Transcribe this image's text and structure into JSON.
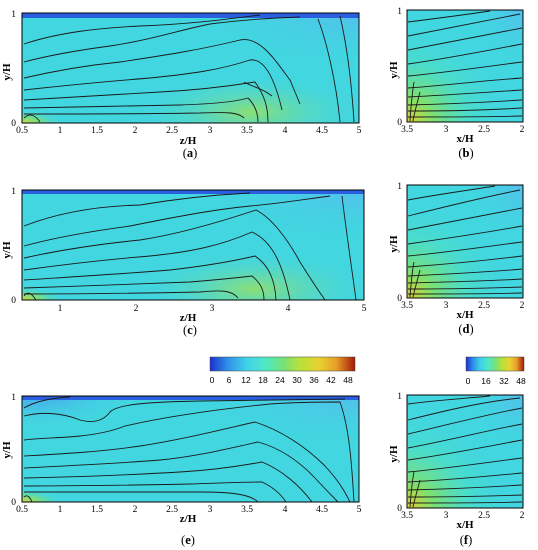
{
  "panels": [
    {
      "id": "a",
      "label_open": "(",
      "label_letter": "a",
      "label_close": ")",
      "xlabel": "z/H",
      "ylabel": "y/H",
      "xticks": [
        "0.5",
        "1",
        "1.5",
        "2",
        "2.5",
        "3",
        "3.5",
        "4",
        "4.5",
        "5"
      ],
      "yticks": [
        "0",
        "1"
      ]
    },
    {
      "id": "b",
      "label_open": "(",
      "label_letter": "b",
      "label_close": ")",
      "xlabel": "x/H",
      "ylabel": "y/H",
      "xticks": [
        "3.5",
        "3",
        "2.5",
        "2"
      ],
      "yticks": [
        "0",
        "1"
      ]
    },
    {
      "id": "c",
      "label_open": "(",
      "label_letter": "c",
      "label_close": ")",
      "xlabel": "z/H",
      "ylabel": "y/H",
      "xticks": [
        "1",
        "2",
        "3",
        "4",
        "5"
      ],
      "yticks": [
        "0",
        "1"
      ]
    },
    {
      "id": "d",
      "label_open": "(",
      "label_letter": "d",
      "label_close": ")",
      "xlabel": "x/H",
      "ylabel": "y/H",
      "xticks": [
        "3.5",
        "3",
        "2.5",
        "2"
      ],
      "yticks": [
        "0",
        "1"
      ]
    },
    {
      "id": "e",
      "label_open": "(",
      "label_letter": "e",
      "label_close": ")",
      "xlabel": "z/H",
      "ylabel": "y/H",
      "xticks": [
        "0.5",
        "1",
        "1.5",
        "2",
        "2.5",
        "3",
        "3.5",
        "4",
        "4.5",
        "5"
      ],
      "yticks": [
        "0",
        "1"
      ]
    },
    {
      "id": "f",
      "label_open": "(",
      "label_letter": "f",
      "label_close": ")",
      "xlabel": "x/H",
      "ylabel": "y/H",
      "xticks": [
        "3.5",
        "3",
        "2.5",
        "2"
      ],
      "yticks": [
        "0",
        "1"
      ]
    }
  ],
  "colorbars": [
    {
      "id": "main",
      "ticks": [
        "0",
        "6",
        "12",
        "18",
        "24",
        "30",
        "36",
        "42",
        "48"
      ]
    },
    {
      "id": "small",
      "ticks": [
        "0",
        "16",
        "32",
        "48"
      ]
    }
  ],
  "colors": {
    "scale": [
      "#1e2fd0",
      "#2f8fe8",
      "#3fd2e8",
      "#4fe8c8",
      "#72e27a",
      "#b8e03a",
      "#e8d230",
      "#e8a028",
      "#c84818",
      "#a01808"
    ],
    "field_base": "#3fd6e2",
    "field_warm": "#8ee46a",
    "contour": "#1a1a1a"
  }
}
